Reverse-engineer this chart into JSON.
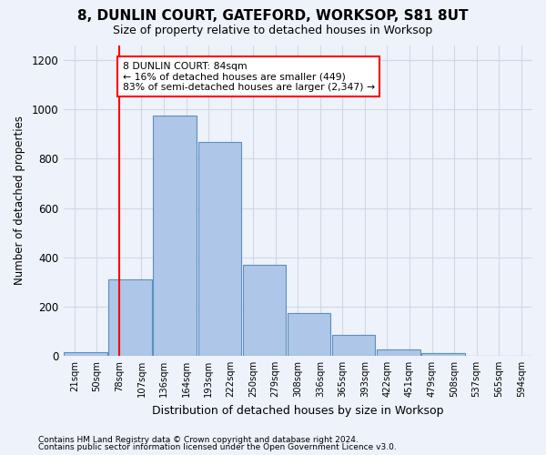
{
  "title": "8, DUNLIN COURT, GATEFORD, WORKSOP, S81 8UT",
  "subtitle": "Size of property relative to detached houses in Worksop",
  "xlabel": "Distribution of detached houses by size in Worksop",
  "ylabel": "Number of detached properties",
  "footer_line1": "Contains HM Land Registry data © Crown copyright and database right 2024.",
  "footer_line2": "Contains public sector information licensed under the Open Government Licence v3.0.",
  "bin_labels": [
    "21sqm",
    "50sqm",
    "78sqm",
    "107sqm",
    "136sqm",
    "164sqm",
    "193sqm",
    "222sqm",
    "250sqm",
    "279sqm",
    "308sqm",
    "336sqm",
    "365sqm",
    "393sqm",
    "422sqm",
    "451sqm",
    "479sqm",
    "508sqm",
    "537sqm",
    "565sqm",
    "594sqm"
  ],
  "bar_values": [
    13,
    310,
    975,
    870,
    370,
    175,
    85,
    25,
    10,
    0,
    0,
    0,
    0,
    15,
    0,
    0,
    0,
    0,
    0,
    0,
    0
  ],
  "bar_color": "#aec6e8",
  "bar_edge_color": "#5a8fc2",
  "grid_color": "#d0d8e8",
  "vline_color": "red",
  "annotation_text": "8 DUNLIN COURT: 84sqm\n← 16% of detached houses are smaller (449)\n83% of semi-detached houses are larger (2,347) →",
  "annotation_box_color": "white",
  "annotation_box_edge": "red",
  "ylim": [
    0,
    1260
  ],
  "yticks": [
    0,
    200,
    400,
    600,
    800,
    1000,
    1200
  ],
  "background_color": "#eef2fb",
  "axes_background": "#eef2fb",
  "title_fontsize": 11,
  "subtitle_fontsize": 9
}
